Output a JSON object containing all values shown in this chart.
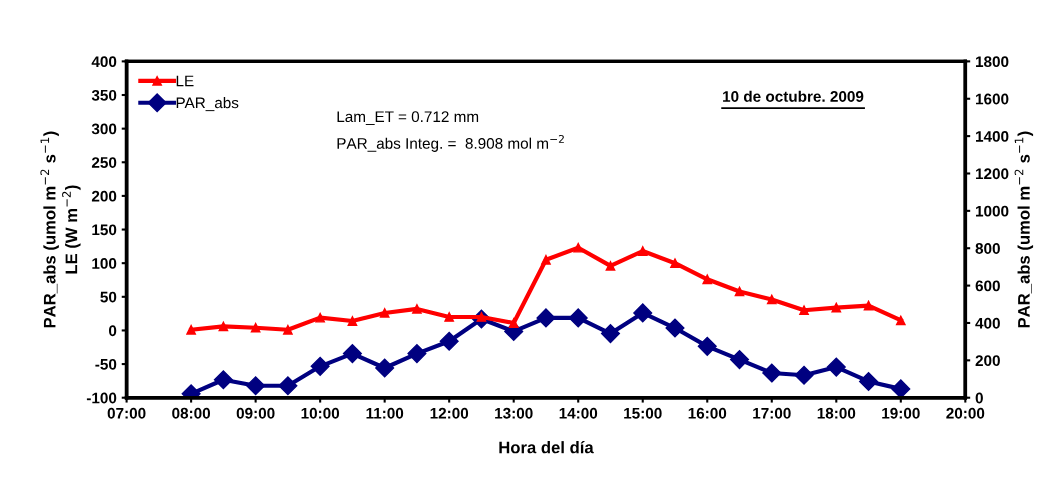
{
  "chart_data": {
    "type": "line",
    "xlabel": "Hora del día",
    "ylabel": "PAR_abs (umol m$^{−2}$ s$^{−1}$)\nLE (W m$^{−2}$)",
    "y2label": "PAR_abs (umol m$^{−2}$ s$^{−1}$)",
    "x": [
      8,
      8.5,
      9,
      9.5,
      10,
      10.5,
      11,
      11.5,
      12,
      12.5,
      13,
      13.5,
      14,
      14.5,
      15,
      15.5,
      16,
      16.5,
      17,
      17.5,
      18,
      18.5,
      19
    ],
    "series": [
      {
        "name": "LE",
        "color": "#ff0000",
        "marker": "triangle",
        "values": [
          1,
          6,
          4,
          1,
          19,
          14,
          26,
          32,
          20,
          20,
          11,
          105,
          123,
          96,
          118,
          100,
          76,
          58,
          46,
          30,
          34,
          37,
          15
        ]
      },
      {
        "name": "PAR_abs",
        "color": "#000080",
        "marker": "diamond",
        "axis": "y2",
        "values": [
          21,
          96,
          64,
          64,
          168,
          236,
          159,
          236,
          302,
          421,
          355,
          427,
          427,
          343,
          454,
          373,
          275,
          204,
          132,
          120,
          164,
          87,
          47
        ]
      }
    ],
    "xlim": [
      7,
      20
    ],
    "xticks": [
      {
        "value": 7,
        "label": "07:00"
      },
      {
        "value": 8,
        "label": "08:00"
      },
      {
        "value": 9,
        "label": "09:00"
      },
      {
        "value": 10,
        "label": "10:00"
      },
      {
        "value": 11,
        "label": "11:00"
      },
      {
        "value": 12,
        "label": "12:00"
      },
      {
        "value": 13,
        "label": "13:00"
      },
      {
        "value": 14,
        "label": "14:00"
      },
      {
        "value": 15,
        "label": "15:00"
      },
      {
        "value": 16,
        "label": "16:00"
      },
      {
        "value": 17,
        "label": "17:00"
      },
      {
        "value": 18,
        "label": "18:00"
      },
      {
        "value": 19,
        "label": "19:00"
      },
      {
        "value": 20,
        "label": "20:00"
      }
    ],
    "ylim": [
      -100,
      400
    ],
    "yticks": [
      -100,
      -50,
      0,
      50,
      100,
      150,
      200,
      250,
      300,
      350,
      400
    ],
    "y2lim": [
      0,
      1800
    ],
    "y2ticks": [
      0,
      200,
      400,
      600,
      800,
      1000,
      1200,
      1400,
      1600,
      1800
    ],
    "annotations": [
      "Lam_ET = 0.712 mm",
      "PAR_abs Integ. =  8.908 mol m$^{−2}$",
      "10 de octubre. 2009"
    ],
    "legend": "top left",
    "grid": false,
    "line_style": "solid"
  }
}
